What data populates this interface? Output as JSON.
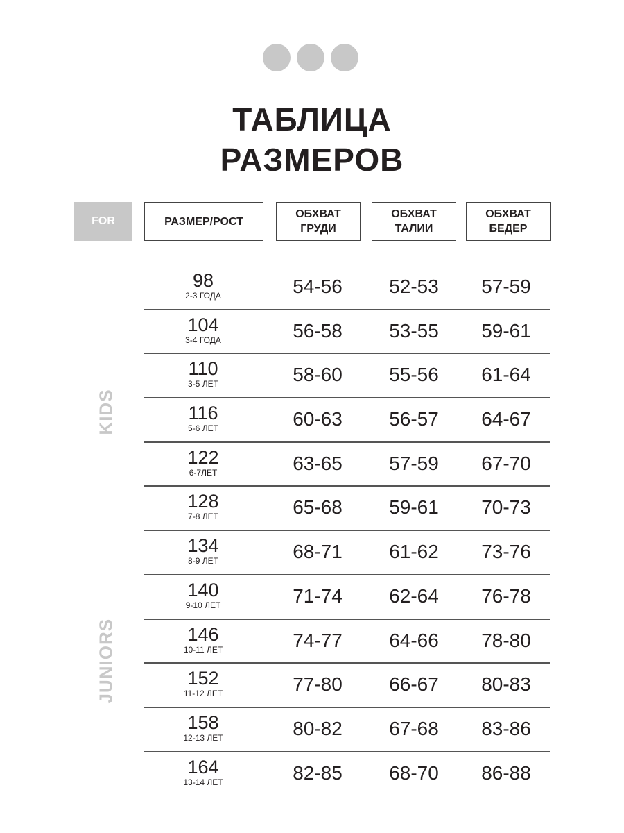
{
  "title_line1": "ТАБЛИЦА",
  "title_line2": "РАЗМЕРОВ",
  "header": {
    "for": "FOR",
    "size": "РАЗМЕР/РОСТ",
    "chest": [
      "ОБХВАТ",
      "ГРУДИ"
    ],
    "waist": [
      "ОБХВАТ",
      "ТАЛИИ"
    ],
    "hips": [
      "ОБХВАТ",
      "БЕДЕР"
    ]
  },
  "groups": {
    "kids": "KIDS",
    "juniors": "JUNIORS"
  },
  "rows": [
    {
      "size": "98",
      "age": "2-3 ГОДА",
      "chest": "54-56",
      "waist": "52-53",
      "hips": "57-59"
    },
    {
      "size": "104",
      "age": "3-4 ГОДА",
      "chest": "56-58",
      "waist": "53-55",
      "hips": "59-61"
    },
    {
      "size": "110",
      "age": "3-5 ЛЕТ",
      "chest": "58-60",
      "waist": "55-56",
      "hips": "61-64"
    },
    {
      "size": "116",
      "age": "5-6 ЛЕТ",
      "chest": "60-63",
      "waist": "56-57",
      "hips": "64-67"
    },
    {
      "size": "122",
      "age": "6-7ЛЕТ",
      "chest": "63-65",
      "waist": "57-59",
      "hips": "67-70"
    },
    {
      "size": "128",
      "age": "7-8 ЛЕТ",
      "chest": "65-68",
      "waist": "59-61",
      "hips": "70-73"
    },
    {
      "size": "134",
      "age": "8-9 ЛЕТ",
      "chest": "68-71",
      "waist": "61-62",
      "hips": "73-76"
    },
    {
      "size": "140",
      "age": "9-10 ЛЕТ",
      "chest": "71-74",
      "waist": "62-64",
      "hips": "76-78"
    },
    {
      "size": "146",
      "age": "10-11 ЛЕТ",
      "chest": "74-77",
      "waist": "64-66",
      "hips": "78-80"
    },
    {
      "size": "152",
      "age": "11-12 ЛЕТ",
      "chest": "77-80",
      "waist": "66-67",
      "hips": "80-83"
    },
    {
      "size": "158",
      "age": "12-13 ЛЕТ",
      "chest": "80-82",
      "waist": "67-68",
      "hips": "83-86"
    },
    {
      "size": "164",
      "age": "13-14 ЛЕТ",
      "chest": "82-85",
      "waist": "68-70",
      "hips": "86-88"
    }
  ]
}
